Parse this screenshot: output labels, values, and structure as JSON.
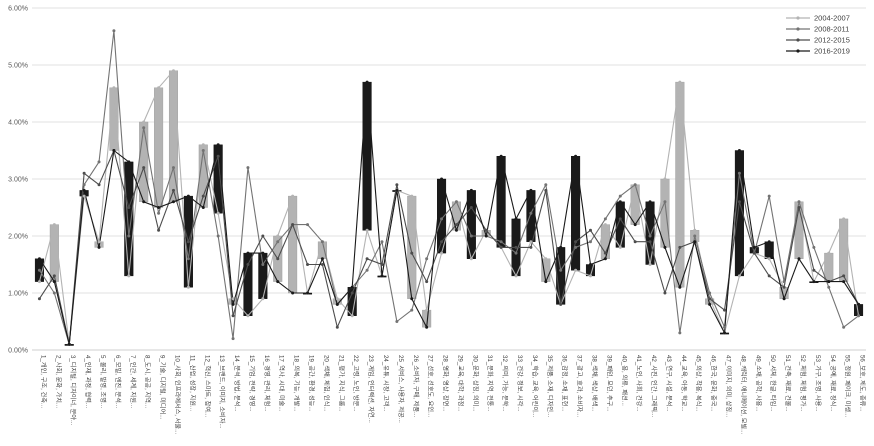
{
  "chart_data": {
    "type": "line",
    "title": "",
    "xlabel": "",
    "ylabel": "",
    "ylim": [
      0,
      6
    ],
    "y_tick_labels": [
      "0.00%",
      "1.00%",
      "2.00%",
      "3.00%",
      "4.00%",
      "5.00%",
      "6.00%"
    ],
    "grid": true,
    "legend_position": "top-right",
    "candles": {
      "open_series": "2004-2007",
      "close_series": "2016-2019",
      "up_color": "#1a1a1a",
      "down_color": "#b3b3b3"
    },
    "categories": [
      "1_개인, 구조, 건축...",
      "2_사회, 문화, 가치...",
      "3_디지털, 디자이너, 분야...",
      "4_인재, 과정, 협력...",
      "5_물리, 발명, 조명...",
      "6_모빌, 엔진, 분석...",
      "7_인간, 세계, 지원...",
      "8_도시, 공공, 지역...",
      "9_기술, 디지털, 미디어...",
      "10_사회, 인프라에서스, 서울...",
      "11_산업, 성장, 지원...",
      "12_혁신, 스마트, 참여...",
      "13_브랜드, 이미지, 소비자...",
      "14_분석, 방법, 분석...",
      "15_기업, 전략, 경영...",
      "16_경영, 관리, 체험...",
      "17_역사, 시대, 미술...",
      "18_의복, 기능, 개발...",
      "19_공간, 환경, 성능...",
      "20_색채, 체험, 인식...",
      "21_평가, 지식, 그룹...",
      "22_고령, 노인, 방문...",
      "23_게임, 인터랙션, 자연...",
      "24_유튜, 시장, 고객...",
      "25_서비스, 사용자, 제공...",
      "26_소비자, 구매, 제품...",
      "27_선호, 선호도, 요인...",
      "28_영화, 영상, 장면...",
      "29_교육, 대학, 과정...",
      "30_문화, 상징, 의미...",
      "31_문화, 지역, 전통...",
      "32_의미, 가능, 문학...",
      "33_건강, 정보, 시각...",
      "34_학습, 교육, 어린이...",
      "35_제품, 소재, 디자인...",
      "36_감정, 소재, 표현...",
      "37_광고, 효과, 소비자...",
      "38_색채, 색상, 배색...",
      "39_패턴, 모던, 추구...",
      "40_용, 의류, 패션...",
      "41_노인, 사회, 건강...",
      "42_사진, 인간, 그래픽...",
      "43_연구, 시설, 분석...",
      "44_교육, 아동, 학교...",
      "45_의상, 착용, 복식...",
      "46_한국, 문화, 중국...",
      "47_이미지, 의미, 상징...",
      "48_캐릭터, 애니메이션, 모빌...",
      "49_소재, 공학, 사용...",
      "50_서체, 한글, 타입...",
      "51_건축, 재료, 건물...",
      "52_체험, 체험, 평가...",
      "53_가구, 조명, 사용...",
      "54_공예, 재료, 장식...",
      "55_정원, 페이크, 미생...",
      "56_보호, 제도, 종류..."
    ],
    "series": [
      {
        "name": "2004-2007",
        "color": "#b3b3b3",
        "values": [
          1.2,
          2.2,
          0.1,
          2.7,
          1.9,
          4.6,
          1.3,
          4.0,
          4.6,
          4.9,
          1.1,
          3.6,
          2.4,
          0.9,
          0.6,
          0.9,
          2.0,
          2.7,
          1.0,
          1.9,
          0.9,
          0.6,
          2.1,
          1.3,
          2.8,
          2.7,
          0.7,
          1.7,
          2.6,
          1.6,
          2.1,
          1.8,
          1.3,
          1.9,
          1.6,
          0.8,
          1.4,
          1.3,
          2.2,
          1.8,
          2.9,
          1.5,
          3.0,
          4.7,
          2.1,
          0.9,
          0.3,
          1.3,
          1.7,
          1.6,
          1.1,
          2.6,
          1.2,
          1.7,
          2.3,
          0.6
        ]
      },
      {
        "name": "2008-2011",
        "color": "#737373",
        "values": [
          1.4,
          1.0,
          0.1,
          2.9,
          3.3,
          5.6,
          2.0,
          3.9,
          2.4,
          3.2,
          1.6,
          3.5,
          2.0,
          0.2,
          3.2,
          1.5,
          1.9,
          2.2,
          2.2,
          1.9,
          0.8,
          1.1,
          1.4,
          1.9,
          0.5,
          0.7,
          1.6,
          2.3,
          2.6,
          2.0,
          2.0,
          1.9,
          1.7,
          2.4,
          2.9,
          1.4,
          1.8,
          1.9,
          2.3,
          2.7,
          2.9,
          2.0,
          2.6,
          0.3,
          2.0,
          1.0,
          0.4,
          3.1,
          1.7,
          2.7,
          1.2,
          2.6,
          1.8,
          1.1,
          0.4,
          0.6
        ]
      },
      {
        "name": "2012-2015",
        "color": "#4d4d4d",
        "values": [
          0.9,
          1.3,
          0.1,
          3.1,
          2.9,
          3.5,
          2.5,
          3.2,
          2.1,
          2.8,
          1.9,
          2.7,
          3.4,
          0.6,
          1.5,
          2.0,
          1.6,
          2.2,
          1.5,
          1.5,
          0.4,
          1.0,
          1.6,
          1.5,
          2.9,
          1.7,
          1.2,
          1.9,
          2.2,
          2.5,
          2.1,
          1.8,
          1.8,
          1.8,
          2.8,
          0.8,
          1.9,
          2.1,
          1.7,
          2.3,
          1.9,
          1.9,
          1.0,
          1.8,
          1.9,
          0.9,
          0.7,
          2.6,
          1.7,
          1.3,
          1.1,
          2.5,
          1.4,
          1.2,
          1.3,
          0.8
        ]
      },
      {
        "name": "2016-2019",
        "color": "#1a1a1a",
        "values": [
          1.6,
          1.2,
          0.1,
          2.8,
          1.8,
          3.5,
          3.3,
          2.6,
          2.5,
          2.6,
          2.7,
          2.5,
          3.6,
          0.8,
          1.7,
          1.7,
          1.2,
          1.0,
          1.0,
          1.6,
          0.8,
          1.1,
          4.7,
          1.3,
          2.8,
          0.9,
          0.4,
          3.0,
          2.1,
          2.8,
          2.0,
          3.4,
          2.3,
          2.8,
          1.2,
          1.8,
          3.4,
          1.5,
          1.6,
          2.6,
          2.2,
          2.6,
          1.8,
          1.1,
          1.9,
          0.8,
          0.3,
          3.5,
          1.8,
          1.9,
          0.9,
          1.6,
          1.2,
          1.2,
          1.2,
          0.8
        ]
      }
    ]
  }
}
